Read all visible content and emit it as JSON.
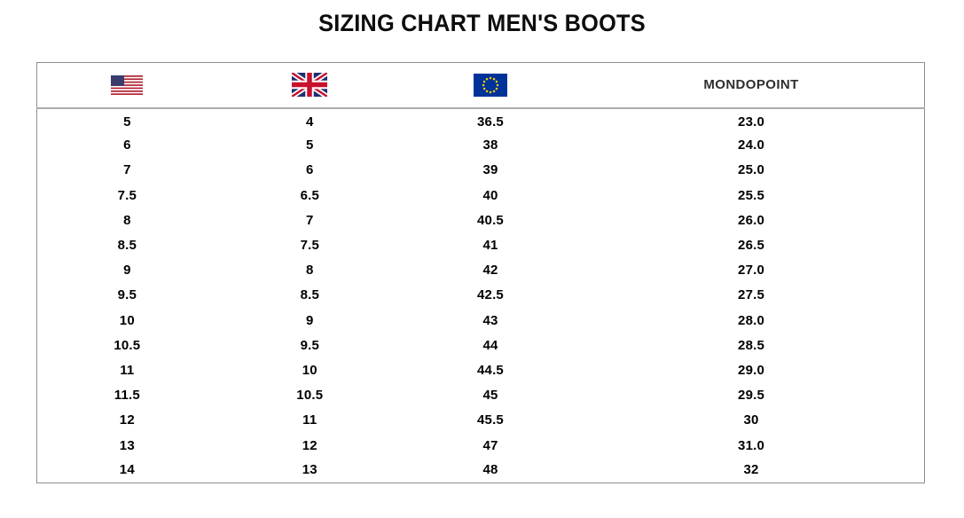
{
  "title": "SIZING CHART MEN'S BOOTS",
  "header": {
    "us_flag_icon": "us-flag-icon",
    "uk_flag_icon": "uk-flag-icon",
    "eu_flag_icon": "eu-flag-icon",
    "mondopoint_label": "MONDOPOINT"
  },
  "colors": {
    "us_flag_red": "#B22234",
    "us_flag_blue": "#3C3B6E",
    "uk_flag_blue": "#1E2F6F",
    "uk_flag_red": "#C8102E",
    "eu_flag_blue": "#003399",
    "eu_flag_star": "#FFCC00",
    "border_gray": "#8f8f8f",
    "header_divider_gray": "#adadad",
    "text_black": "#000000"
  },
  "chart_data": {
    "type": "table",
    "title": "SIZING CHART MEN'S BOOTS",
    "columns": [
      "US",
      "UK",
      "EU",
      "MONDOPOINT"
    ],
    "rows": [
      [
        "5",
        "4",
        "36.5",
        "23.0"
      ],
      [
        "6",
        "5",
        "38",
        "24.0"
      ],
      [
        "7",
        "6",
        "39",
        "25.0"
      ],
      [
        "7.5",
        "6.5",
        "40",
        "25.5"
      ],
      [
        "8",
        "7",
        "40.5",
        "26.0"
      ],
      [
        "8.5",
        "7.5",
        "41",
        "26.5"
      ],
      [
        "9",
        "8",
        "42",
        "27.0"
      ],
      [
        "9.5",
        "8.5",
        "42.5",
        "27.5"
      ],
      [
        "10",
        "9",
        "43",
        "28.0"
      ],
      [
        "10.5",
        "9.5",
        "44",
        "28.5"
      ],
      [
        "11",
        "10",
        "44.5",
        "29.0"
      ],
      [
        "11.5",
        "10.5",
        "45",
        "29.5"
      ],
      [
        "12",
        "11",
        "45.5",
        "30"
      ],
      [
        "13",
        "12",
        "47",
        "31.0"
      ],
      [
        "14",
        "13",
        "48",
        "32"
      ]
    ]
  }
}
